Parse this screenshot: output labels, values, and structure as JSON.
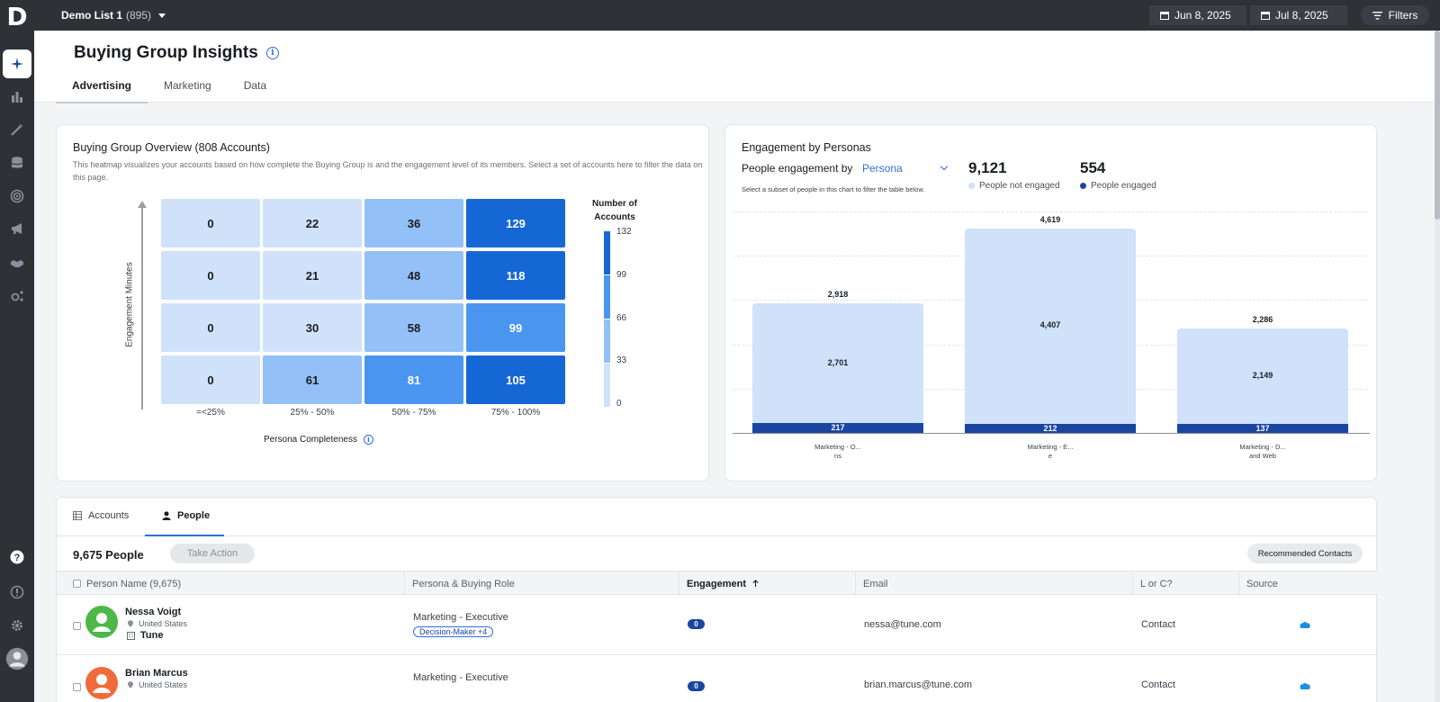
{
  "app": {
    "logo_letter": "D",
    "list_name": "Demo List 1",
    "list_count": "(895)",
    "date_start": "Jun 8, 2025",
    "date_end": "Jul 8, 2025",
    "filters_label": "Filters"
  },
  "rail": {
    "icons": [
      "sparkle-icon",
      "bar-chart-icon",
      "magic-wand-icon",
      "database-icon",
      "target-icon",
      "megaphone-icon",
      "handshake-icon",
      "gear-network-icon"
    ],
    "bottom_icons": [
      "help-icon",
      "lightbulb-icon",
      "settings-icon",
      "user-avatar-icon"
    ]
  },
  "page": {
    "title": "Buying Group Insights",
    "tabs": [
      {
        "label": "Advertising",
        "active": true
      },
      {
        "label": "Marketing",
        "active": false
      },
      {
        "label": "Data",
        "active": false
      }
    ]
  },
  "overview": {
    "title": "Buying Group Overview (808 Accounts)",
    "description": "This heatmap visualizes your accounts based on how complete the Buying Group is and the engagement level of its members. Select a set of accounts here to filter the data on this page.",
    "y_label": "Engagement Minutes",
    "x_title": "Persona Completeness",
    "legend_title_line1": "Number of",
    "legend_title_line2": "Accounts",
    "legend_ticks": [
      "132",
      "99",
      "66",
      "33",
      "0"
    ],
    "x_categories": [
      "=<25%",
      "25% - 50%",
      "50% - 75%",
      "75% - 100%"
    ],
    "rows": [
      [
        "0",
        "22",
        "36",
        "129"
      ],
      [
        "0",
        "21",
        "48",
        "118"
      ],
      [
        "0",
        "30",
        "58",
        "99"
      ],
      [
        "0",
        "61",
        "81",
        "105"
      ]
    ]
  },
  "personas": {
    "title": "Engagement by Personas",
    "select_label": "People engagement by",
    "select_value": "Persona",
    "hint": "Select a subset of people in this chart to filter the table below.",
    "stat_not_engaged": "9,121",
    "stat_not_engaged_label": "People not engaged",
    "stat_engaged": "554",
    "stat_engaged_label": "People engaged",
    "colors": {
      "not_engaged": "#cfe2fa",
      "engaged": "#1a46a0"
    }
  },
  "chart_data": {
    "type": "bar",
    "stacked": true,
    "categories": [
      "Marketing - O... ns",
      "Marketing - E... e",
      "Marketing - D... and Web"
    ],
    "category_lines": [
      [
        "Marketing - O...",
        "ns"
      ],
      [
        "Marketing - E...",
        "e"
      ],
      [
        "Marketing - D...",
        "and Web"
      ]
    ],
    "series": [
      {
        "name": "People not engaged",
        "values": [
          2701,
          4407,
          2149
        ],
        "labels": [
          "2,701",
          "4,407",
          "2,149"
        ]
      },
      {
        "name": "People engaged",
        "values": [
          217,
          212,
          137
        ],
        "labels": [
          "217",
          "212",
          "137"
        ]
      }
    ],
    "totals": [
      2918,
      4619,
      2286
    ],
    "total_labels": [
      "2,918",
      "4,619",
      "2,286"
    ],
    "ylim": [
      0,
      5000
    ],
    "grid": true
  },
  "people": {
    "tabs": [
      {
        "label": "Accounts",
        "active": false
      },
      {
        "label": "People",
        "active": true
      }
    ],
    "count_label": "9,675 People",
    "take_action": "Take Action",
    "recommended": "Recommended Contacts",
    "columns": [
      "Person Name (9,675)",
      "Persona & Buying Role",
      "Engagement",
      "Email",
      "L or C?",
      "Source"
    ],
    "rows": [
      {
        "name": "Nessa Voigt",
        "location": "United States",
        "company": "Tune",
        "persona": "Marketing - Executive",
        "role_tag": "Decision-Maker +4",
        "engagement": "0",
        "email": "nessa@tune.com",
        "lc": "Contact",
        "avatar_color": "#4cb847"
      },
      {
        "name": "Brian Marcus",
        "location": "United States",
        "company": "",
        "persona": "Marketing - Executive",
        "role_tag": "",
        "engagement": "0",
        "email": "brian.marcus@tune.com",
        "lc": "Contact",
        "avatar_color": "#f06a3c"
      }
    ]
  }
}
